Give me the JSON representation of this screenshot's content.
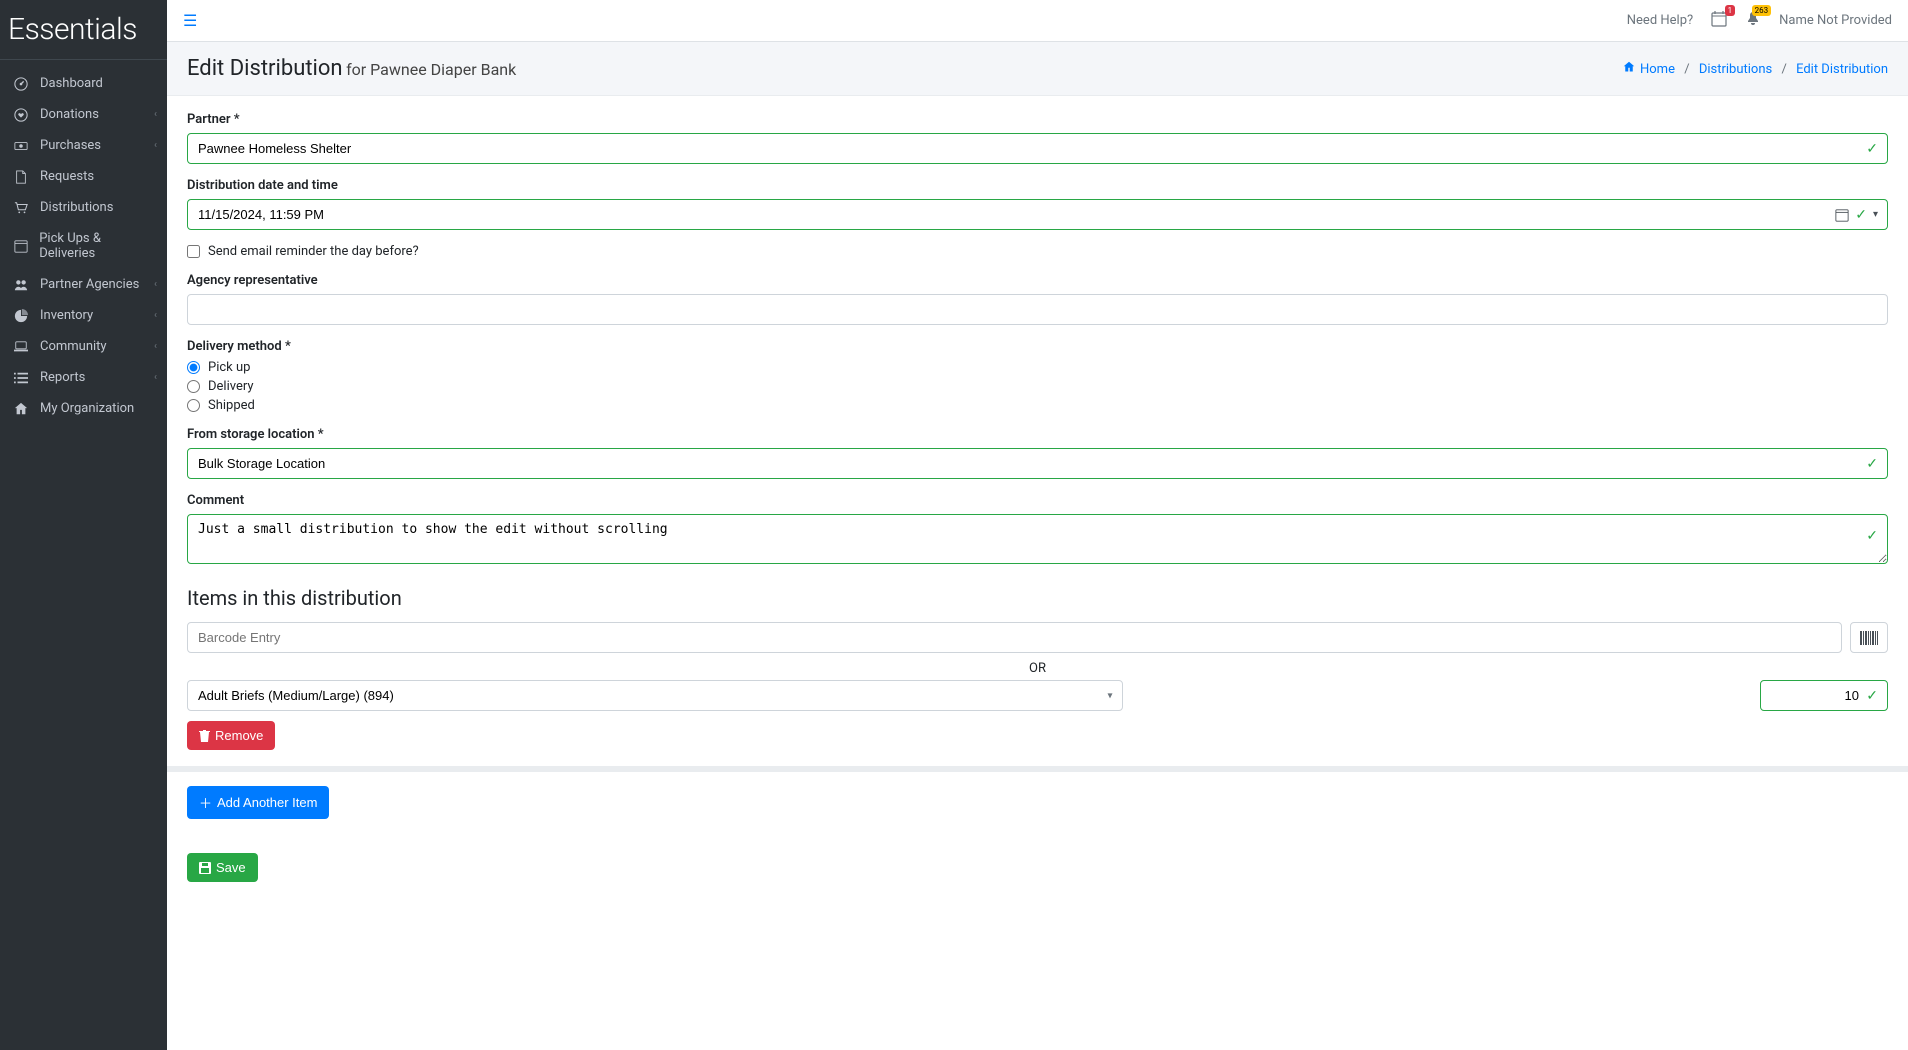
{
  "brand": "Essentials",
  "topbar": {
    "need_help": "Need Help?",
    "calendar_badge": "1",
    "bell_badge": "263",
    "user_name": "Name Not Provided"
  },
  "sidebar": {
    "items": [
      {
        "label": "Dashboard",
        "icon": "gauge",
        "expandable": false
      },
      {
        "label": "Donations",
        "icon": "heart",
        "expandable": true
      },
      {
        "label": "Purchases",
        "icon": "cash",
        "expandable": true
      },
      {
        "label": "Requests",
        "icon": "file",
        "expandable": false
      },
      {
        "label": "Distributions",
        "icon": "cart",
        "expandable": false
      },
      {
        "label": "Pick Ups & Deliveries",
        "icon": "calendar",
        "expandable": false
      },
      {
        "label": "Partner Agencies",
        "icon": "users",
        "expandable": true
      },
      {
        "label": "Inventory",
        "icon": "pie",
        "expandable": true
      },
      {
        "label": "Community",
        "icon": "laptop",
        "expandable": true
      },
      {
        "label": "Reports",
        "icon": "list",
        "expandable": true
      },
      {
        "label": "My Organization",
        "icon": "home",
        "expandable": false
      }
    ]
  },
  "header": {
    "title": "Edit Distribution",
    "subtitle": "for Pawnee Diaper Bank"
  },
  "breadcrumbs": {
    "home": "Home",
    "mid": "Distributions",
    "current": "Edit Distribution"
  },
  "form": {
    "partner_label": "Partner *",
    "partner_value": "Pawnee Homeless Shelter",
    "date_label": "Distribution date and time",
    "date_value": "11/15/2024, 11:59 PM",
    "reminder_label": "Send email reminder the day before?",
    "agency_label": "Agency representative",
    "agency_value": "",
    "delivery_label": "Delivery method *",
    "delivery_options": {
      "pickup": "Pick up",
      "delivery": "Delivery",
      "shipped": "Shipped"
    },
    "storage_label": "From storage location *",
    "storage_value": "Bulk Storage Location",
    "comment_label": "Comment",
    "comment_value": "Just a small distribution to show the edit without scrolling"
  },
  "items_section": {
    "title": "Items in this distribution",
    "barcode_placeholder": "Barcode Entry",
    "or_text": "OR",
    "item_name": "Adult Briefs (Medium/Large) (894)",
    "item_qty": "10",
    "remove_label": "Remove",
    "add_label": "Add Another Item",
    "save_label": "Save"
  },
  "colors": {
    "sidebar_bg": "#2b3035",
    "primary": "#007bff",
    "success": "#28a745",
    "danger": "#dc3545",
    "warning": "#ffc107"
  }
}
